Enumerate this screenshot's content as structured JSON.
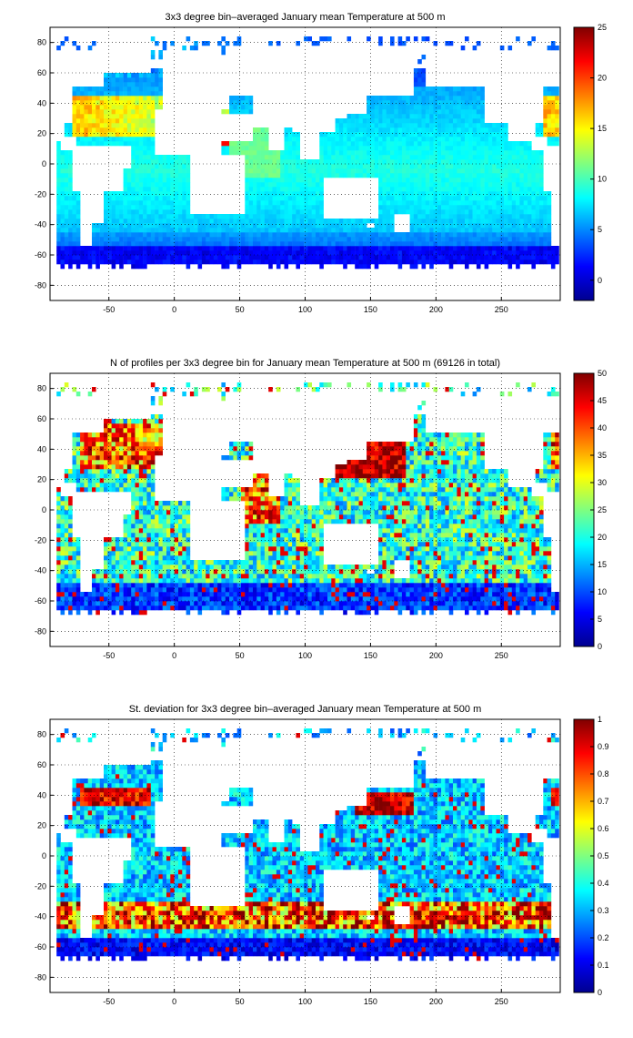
{
  "figure": {
    "background": "#ffffff",
    "land_color": "#ffffff",
    "coast_color": "#000000"
  },
  "chart_data": [
    {
      "type": "heatmap",
      "title": "3x3 degree bin–averaged January mean Temperature at 500 m",
      "xlim": [
        -95,
        295
      ],
      "ylim": [
        -90,
        90
      ],
      "xticks": [
        -50,
        0,
        50,
        100,
        150,
        200,
        250
      ],
      "yticks": [
        80,
        60,
        40,
        20,
        0,
        -20,
        -40,
        -60,
        -80
      ],
      "grid": true,
      "grid_style": "dotted",
      "colormap": "jet",
      "clim": [
        -2,
        25
      ],
      "colorbar_ticks": [
        25,
        20,
        15,
        10,
        5,
        0
      ],
      "bin_size_deg": 3,
      "field": "temperature"
    },
    {
      "type": "heatmap",
      "title": "N of profiles per 3x3 degree bin for January mean Temperature at 500 m (69126 in total)",
      "xlim": [
        -95,
        295
      ],
      "ylim": [
        -90,
        90
      ],
      "xticks": [
        -50,
        0,
        50,
        100,
        150,
        200,
        250
      ],
      "yticks": [
        80,
        60,
        40,
        20,
        0,
        -20,
        -40,
        -60,
        -80
      ],
      "grid": true,
      "grid_style": "dotted",
      "colormap": "jet",
      "clim": [
        0,
        50
      ],
      "colorbar_ticks": [
        50,
        45,
        40,
        35,
        30,
        25,
        20,
        15,
        10,
        5,
        0
      ],
      "bin_size_deg": 3,
      "field": "count"
    },
    {
      "type": "heatmap",
      "title": "St. deviation for 3x3 degree bin–averaged January mean Temperature at 500 m",
      "xlim": [
        -95,
        295
      ],
      "ylim": [
        -90,
        90
      ],
      "xticks": [
        -50,
        0,
        50,
        100,
        150,
        200,
        250
      ],
      "yticks": [
        80,
        60,
        40,
        20,
        0,
        -20,
        -40,
        -60,
        -80
      ],
      "grid": true,
      "grid_style": "dotted",
      "colormap": "jet",
      "clim": [
        0,
        1
      ],
      "colorbar_ticks": [
        1,
        0.9,
        0.8,
        0.7,
        0.6,
        0.5,
        0.4,
        0.3,
        0.2,
        0.1,
        0
      ],
      "bin_size_deg": 3,
      "field": "stdev"
    }
  ]
}
